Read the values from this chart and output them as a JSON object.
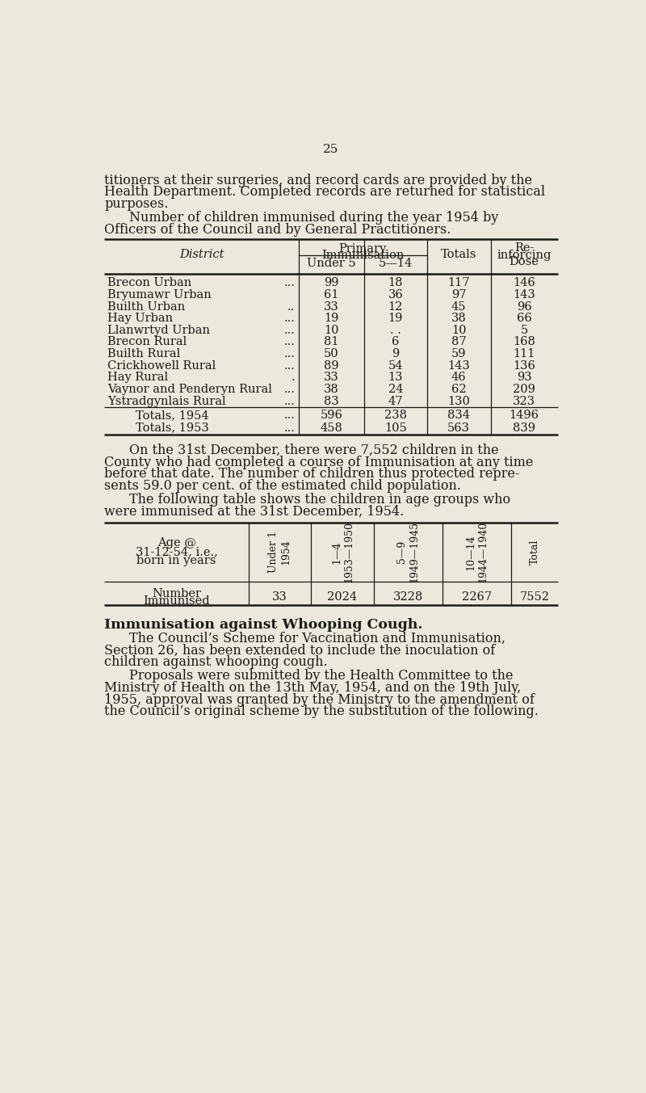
{
  "page_number": "25",
  "bg_color": "#ece8db",
  "text_color": "#1a1a1a",
  "intro_text": [
    "titioners at their surgeries, and record cards are provided by the",
    "Health Department. Completed records are returned for statistical",
    "purposes."
  ],
  "para1": [
    "Number of children immunised during the year 1954 by",
    "Officers of the Council and by General Practitioners."
  ],
  "table1_rows": [
    [
      "Brecon Urban",
      "...",
      "99",
      "18",
      "117",
      "146"
    ],
    [
      "Bryumawr Urban",
      "",
      "61",
      "36",
      "97",
      "143"
    ],
    [
      "Builth Urban",
      "..",
      "33",
      "12",
      "45",
      "96"
    ],
    [
      "Hay Urban",
      "...",
      "19",
      "19",
      "38",
      "66"
    ],
    [
      "Llanwrtyd Urban",
      "...",
      "10",
      ". .",
      "10",
      "5"
    ],
    [
      "Brecon Rural",
      "...",
      "81",
      "6",
      "87",
      "168"
    ],
    [
      "Builth Rural",
      "...",
      "50",
      "9",
      "59",
      "111"
    ],
    [
      "Crickhowell Rural",
      "...",
      "89",
      "54",
      "143",
      "136"
    ],
    [
      "Hay Rural",
      ".",
      "33",
      "13",
      "46",
      "93"
    ],
    [
      "Vaynor and Penderyn Rural",
      "...",
      "38",
      "24",
      "62",
      "209"
    ],
    [
      "Ystradgynlais Rural",
      "...",
      "83",
      "47",
      "130",
      "323"
    ]
  ],
  "table1_totals": [
    [
      "Totals, 1954",
      "...",
      "596",
      "238",
      "834",
      "1496"
    ],
    [
      "Totals, 1953",
      "...",
      "458",
      "105",
      "563",
      "839"
    ]
  ],
  "para2": [
    "On the 31st December, there were 7,552 children in the",
    "County who had completed a course of Immunisation at any time",
    "before that date. The number of children thus protected repre-",
    "sents 59.0 per cent. of the estimated child population."
  ],
  "para3": [
    "The following table shows the children in age groups who",
    "were immunised at the 31st December, 1954."
  ],
  "table2_col_headers": [
    "Under 1\n1954",
    "1—4\n1953—1950",
    "5—9\n1949—1945",
    "10—14\n1944—1940",
    "Total"
  ],
  "table2_row_label": [
    "Age @",
    "31-12-54, i.e.,",
    "born in years"
  ],
  "table2_data_label": [
    "Number",
    "Immunised"
  ],
  "table2_data": [
    "33",
    "2024",
    "3228",
    "2267",
    "7552"
  ],
  "section_heading": "Immunisation against Whooping Cough.",
  "para4": [
    "The Council’s Scheme for Vaccination and Immunisation,",
    "Section 26, has been extended to include the inoculation of",
    "children against whooping cough."
  ],
  "para5": [
    "Proposals were submitted by the Health Committee to the",
    "Ministry of Health on the 13th May, 1954, and on the 19th July,",
    "1955, approval was granted by the Ministry to the amendment of",
    "the Council’s original scheme by the substitution of the following."
  ],
  "lmargin": 38,
  "rmargin": 762,
  "indent": 78,
  "body_fontsize": 11.5,
  "table_fontsize": 10.5,
  "lw_thick": 1.8,
  "lw_thin": 0.9
}
